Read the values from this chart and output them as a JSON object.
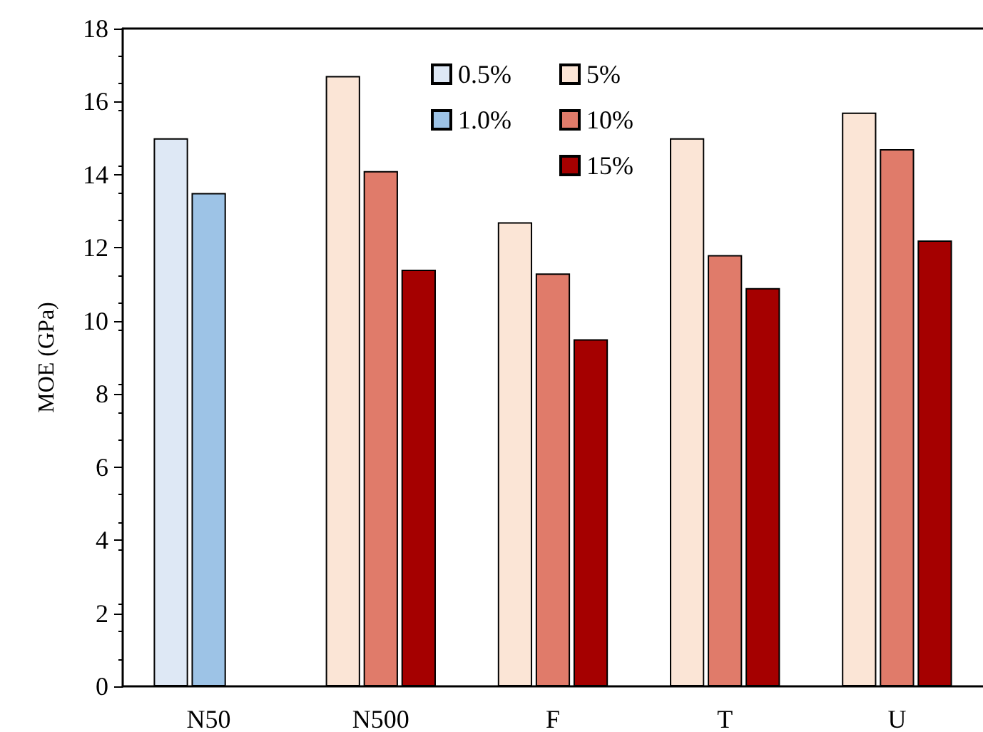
{
  "chart_data": {
    "type": "bar",
    "ylabel": "MOE (GPa)",
    "categories": [
      "N50",
      "N500",
      "F",
      "T",
      "U"
    ],
    "series": [
      {
        "name": "0.5%",
        "color": "#dee8f5",
        "values": [
          15.0,
          null,
          null,
          null,
          null
        ]
      },
      {
        "name": "1.0%",
        "color": "#9dc3e6",
        "values": [
          13.5,
          null,
          null,
          null,
          null
        ]
      },
      {
        "name": "5%",
        "color": "#fbe5d6",
        "values": [
          null,
          16.7,
          12.7,
          15.0,
          15.7
        ]
      },
      {
        "name": "10%",
        "color": "#e07b6a",
        "values": [
          null,
          14.1,
          11.3,
          11.8,
          14.7
        ]
      },
      {
        "name": "15%",
        "color": "#a50000",
        "values": [
          null,
          11.4,
          9.5,
          10.9,
          12.2
        ]
      }
    ],
    "ylim": [
      0,
      18
    ],
    "yticks": [
      0,
      2,
      4,
      6,
      8,
      10,
      12,
      14,
      16,
      18
    ],
    "grid": false,
    "legend": "top"
  }
}
